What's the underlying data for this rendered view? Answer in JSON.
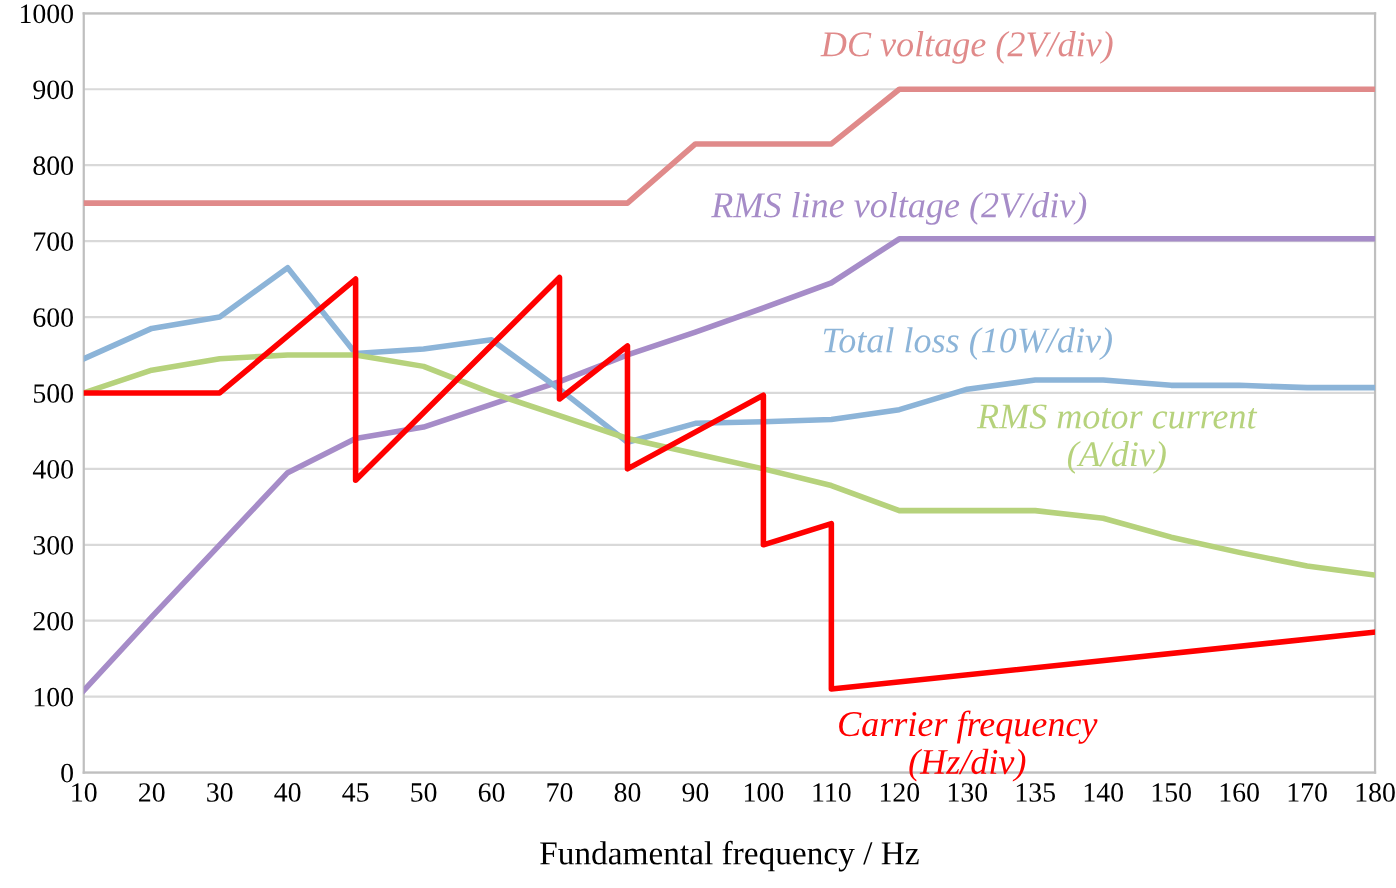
{
  "chart_data": {
    "type": "line",
    "xlabel": "Fundamental frequency / Hz",
    "categories": [
      "10",
      "20",
      "30",
      "40",
      "45",
      "50",
      "60",
      "70",
      "80",
      "90",
      "100",
      "110",
      "120",
      "130",
      "135",
      "140",
      "150",
      "160",
      "170",
      "180"
    ],
    "ylim": [
      0,
      1000
    ],
    "yticks": [
      0,
      100,
      200,
      300,
      400,
      500,
      600,
      700,
      800,
      900,
      1000
    ],
    "grid": "y",
    "legend": false,
    "series": [
      {
        "name": "DC voltage (2V/div)",
        "color": "#e08a8a",
        "values": [
          750,
          750,
          750,
          750,
          750,
          750,
          750,
          750,
          750,
          828,
          828,
          828,
          900,
          900,
          900,
          900,
          900,
          900,
          900,
          900
        ]
      },
      {
        "name": "RMS line voltage (2V/div)",
        "color": "#a68cc8",
        "values": [
          108,
          205,
          300,
          395,
          440,
          455,
          485,
          515,
          550,
          580,
          612,
          645,
          703,
          703,
          703,
          703,
          703,
          703,
          703,
          703
        ]
      },
      {
        "name": "Total loss (10W/div)",
        "color": "#8cb4d8",
        "values": [
          545,
          585,
          600,
          665,
          552,
          558,
          570,
          505,
          435,
          460,
          462,
          465,
          478,
          505,
          517,
          517,
          510,
          510,
          507,
          507
        ]
      },
      {
        "name": "RMS motor current\n(A/div)",
        "color": "#b6d27c",
        "values": [
          500,
          530,
          545,
          550,
          550,
          535,
          500,
          470,
          440,
          420,
          400,
          378,
          345,
          345,
          345,
          335,
          310,
          290,
          272,
          260
        ]
      },
      {
        "name": "Carrier frequency\n(Hz/div)",
        "color": "#ff0000",
        "x": [
          "10",
          "30",
          "45",
          "45",
          "70",
          "70",
          "80",
          "80",
          "100",
          "100",
          "110",
          "110",
          "180"
        ],
        "values": [
          500,
          500,
          650,
          385,
          652,
          492,
          562,
          400,
          497,
          300,
          328,
          110,
          185
        ]
      }
    ]
  }
}
